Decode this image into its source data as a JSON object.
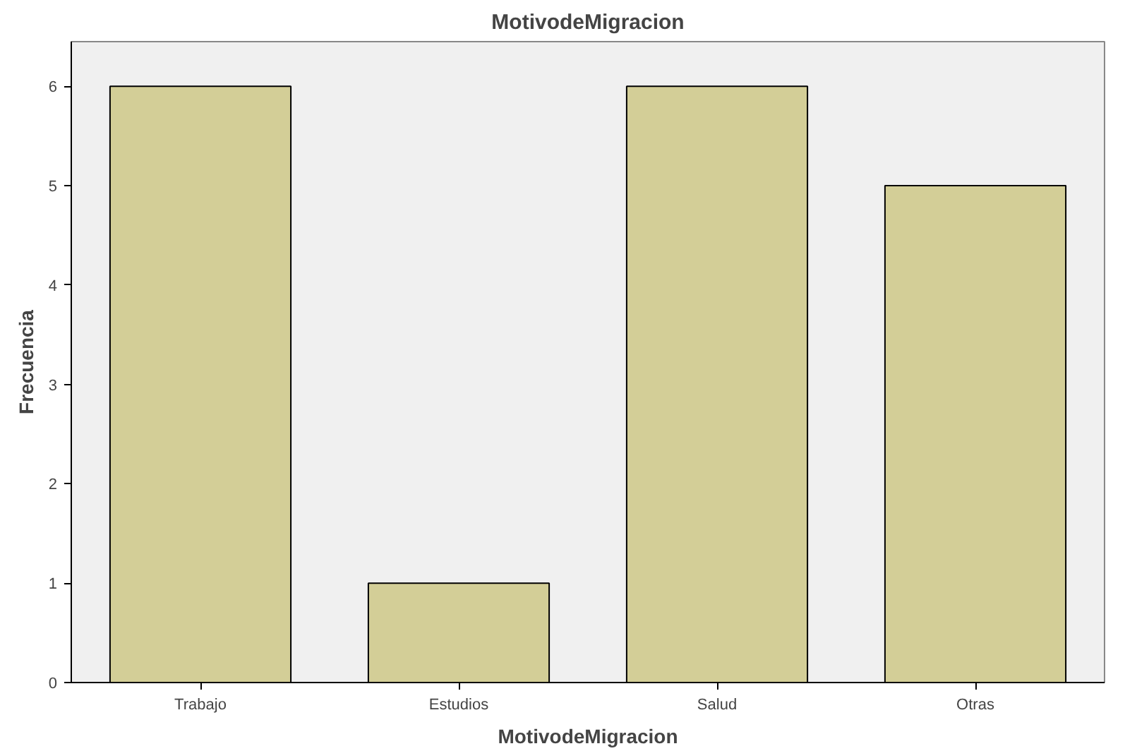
{
  "chart_data": {
    "type": "bar",
    "title": "MotivodeMigracion",
    "xlabel": "MotivodeMigracion",
    "ylabel": "Frecuencia",
    "categories": [
      "Trabajo",
      "Estudios",
      "Salud",
      "Otras"
    ],
    "values": [
      6,
      1,
      6,
      5
    ],
    "color": "#d3ce97",
    "ylim": [
      0,
      6.45
    ],
    "yticks": [
      0,
      1,
      2,
      3,
      4,
      5,
      6
    ],
    "grid": false
  }
}
